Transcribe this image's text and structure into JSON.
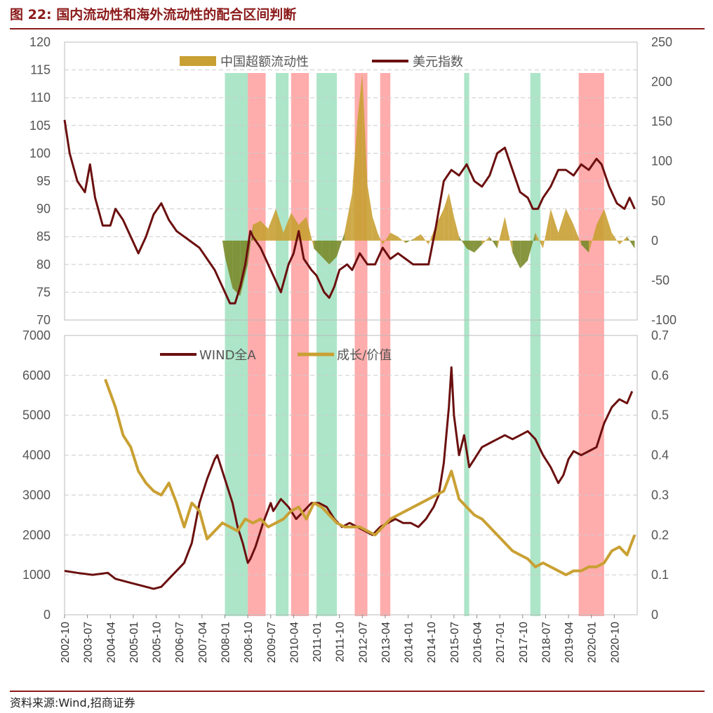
{
  "title": "图 22:  国内流动性和海外流动性的配合区间判断",
  "source": "资料来源:Wind,招商证券",
  "colors": {
    "dark_red": "#6B0F0F",
    "gold": "#C9A033",
    "olive": "#7A8A2A",
    "orange": "#D2691E",
    "green_band": "#9FE0BE",
    "red_band": "#FF9E9E",
    "title": "#8B1A1A"
  },
  "chart_data": [
    {
      "type": "line",
      "panel": "top",
      "legend": [
        "中国超额流动性",
        "美元指数"
      ],
      "y_left_ticks": [
        "120",
        "115",
        "110",
        "105",
        "100",
        "95",
        "90",
        "85",
        "80",
        "75",
        "70"
      ],
      "y_right_ticks": [
        "250",
        "200",
        "150",
        "100",
        "50",
        "0",
        "-50",
        "-100"
      ],
      "ylim_left": [
        70,
        120
      ],
      "ylim_right": [
        -100,
        250
      ],
      "bands": [
        {
          "color": "green",
          "start": "2008-01",
          "end": "2008-10"
        },
        {
          "color": "red",
          "start": "2008-10",
          "end": "2009-05"
        },
        {
          "color": "green",
          "start": "2009-09",
          "end": "2010-02"
        },
        {
          "color": "red",
          "start": "2010-03",
          "end": "2010-10"
        },
        {
          "color": "green",
          "start": "2011-01",
          "end": "2011-09"
        },
        {
          "color": "red",
          "start": "2012-04",
          "end": "2012-09"
        },
        {
          "color": "red",
          "start": "2013-02",
          "end": "2013-06"
        },
        {
          "color": "green",
          "start": "2015-11",
          "end": "2016-01"
        },
        {
          "color": "green",
          "start": "2018-01",
          "end": "2018-05"
        },
        {
          "color": "red",
          "start": "2019-08",
          "end": "2020-06"
        }
      ],
      "series": [
        {
          "name": "美元指数",
          "axis": "left",
          "x": [
            "2002-10",
            "2002-12",
            "2003-03",
            "2003-06",
            "2003-08",
            "2003-10",
            "2004-01",
            "2004-04",
            "2004-06",
            "2004-09",
            "2004-12",
            "2005-03",
            "2005-06",
            "2005-09",
            "2005-12",
            "2006-03",
            "2006-06",
            "2006-09",
            "2006-12",
            "2007-03",
            "2007-06",
            "2007-09",
            "2007-12",
            "2008-03",
            "2008-05",
            "2008-07",
            "2008-09",
            "2008-11",
            "2008-12",
            "2009-03",
            "2009-06",
            "2009-09",
            "2009-11",
            "2010-02",
            "2010-04",
            "2010-06",
            "2010-08",
            "2010-11",
            "2011-01",
            "2011-04",
            "2011-06",
            "2011-08",
            "2011-10",
            "2012-01",
            "2012-03",
            "2012-06",
            "2012-09",
            "2012-12",
            "2013-03",
            "2013-06",
            "2013-09",
            "2013-12",
            "2014-03",
            "2014-06",
            "2014-09",
            "2014-12",
            "2015-03",
            "2015-06",
            "2015-09",
            "2015-12",
            "2016-03",
            "2016-06",
            "2016-09",
            "2016-12",
            "2017-03",
            "2017-06",
            "2017-09",
            "2017-12",
            "2018-02",
            "2018-04",
            "2018-06",
            "2018-09",
            "2018-12",
            "2019-03",
            "2019-06",
            "2019-09",
            "2019-12",
            "2020-03",
            "2020-05",
            "2020-08",
            "2020-11",
            "2021-02",
            "2021-04",
            "2021-06"
          ],
          "values": [
            106,
            100,
            95,
            93,
            98,
            92,
            87,
            87,
            90,
            88,
            85,
            82,
            85,
            89,
            91,
            88,
            86,
            85,
            84,
            83,
            81,
            79,
            76,
            73,
            73,
            76,
            80,
            86,
            85,
            83,
            80,
            77,
            75,
            80,
            82,
            86,
            81,
            79,
            78,
            75,
            74,
            76,
            79,
            80,
            79,
            82,
            80,
            80,
            83,
            81,
            82,
            81,
            80,
            80,
            80,
            87,
            95,
            97,
            96,
            98,
            95,
            94,
            96,
            100,
            101,
            97,
            93,
            92,
            90,
            90,
            92,
            94,
            97,
            97,
            96,
            98,
            97,
            99,
            98,
            94,
            91,
            90,
            92,
            90
          ]
        },
        {
          "name": "中国超额流动性",
          "axis": "right",
          "x": [
            "2002-10",
            "2007-12",
            "2008-01",
            "2008-04",
            "2008-07",
            "2008-10",
            "2008-12",
            "2009-03",
            "2009-06",
            "2009-09",
            "2009-12",
            "2010-03",
            "2010-06",
            "2010-09",
            "2010-12",
            "2011-03",
            "2011-06",
            "2011-09",
            "2011-12",
            "2012-03",
            "2012-05",
            "2012-07",
            "2012-09",
            "2012-11",
            "2013-01",
            "2013-03",
            "2013-06",
            "2013-09",
            "2013-12",
            "2014-03",
            "2014-06",
            "2014-09",
            "2014-12",
            "2015-03",
            "2015-05",
            "2015-07",
            "2015-09",
            "2015-12",
            "2016-03",
            "2016-06",
            "2016-09",
            "2016-12",
            "2017-03",
            "2017-06",
            "2017-09",
            "2017-12",
            "2018-03",
            "2018-06",
            "2018-09",
            "2018-12",
            "2019-03",
            "2019-06",
            "2019-09",
            "2019-12",
            "2020-03",
            "2020-06",
            "2020-09",
            "2020-12",
            "2021-03",
            "2021-06"
          ],
          "values": [
            0,
            0,
            -20,
            -60,
            -70,
            -30,
            20,
            25,
            15,
            40,
            10,
            35,
            20,
            30,
            -10,
            -20,
            -30,
            -20,
            10,
            60,
            150,
            210,
            70,
            30,
            10,
            -5,
            10,
            5,
            -3,
            2,
            8,
            -5,
            20,
            40,
            60,
            30,
            5,
            -10,
            -15,
            -5,
            5,
            -10,
            30,
            -15,
            -35,
            -25,
            10,
            -10,
            40,
            10,
            40,
            20,
            -5,
            -15,
            20,
            40,
            10,
            -5,
            5,
            -10
          ]
        }
      ]
    },
    {
      "type": "line",
      "panel": "bottom",
      "legend": [
        "WIND全A",
        "成长/价值"
      ],
      "y_left_ticks": [
        "7000",
        "6000",
        "5000",
        "4000",
        "3000",
        "2000",
        "1000",
        "0"
      ],
      "y_right_ticks": [
        "0.7",
        "0.6",
        "0.5",
        "0.4",
        "0.3",
        "0.2",
        "0.1",
        "0"
      ],
      "ylim_left": [
        0,
        7000
      ],
      "ylim_right": [
        0,
        0.7
      ],
      "x_tick_labels": [
        "2002-10",
        "2003-07",
        "2004-04",
        "2005-01",
        "2005-10",
        "2006-07",
        "2007-04",
        "2008-01",
        "2008-10",
        "2009-07",
        "2010-04",
        "2011-01",
        "2011-10",
        "2012-07",
        "2013-04",
        "2014-01",
        "2014-10",
        "2015-07",
        "2016-04",
        "2017-01",
        "2017-10",
        "2018-07",
        "2019-04",
        "2020-01",
        "2020-10"
      ],
      "series": [
        {
          "name": "WIND全A",
          "axis": "left",
          "x": [
            "2002-10",
            "2003-03",
            "2003-09",
            "2004-03",
            "2004-06",
            "2004-12",
            "2005-06",
            "2005-09",
            "2005-12",
            "2006-03",
            "2006-06",
            "2006-09",
            "2006-12",
            "2007-03",
            "2007-06",
            "2007-09",
            "2007-10",
            "2007-12",
            "2008-02",
            "2008-04",
            "2008-06",
            "2008-08",
            "2008-10",
            "2008-11",
            "2009-01",
            "2009-04",
            "2009-07",
            "2009-08",
            "2009-11",
            "2010-02",
            "2010-05",
            "2010-08",
            "2010-11",
            "2011-02",
            "2011-05",
            "2011-08",
            "2011-11",
            "2012-02",
            "2012-05",
            "2012-08",
            "2012-11",
            "2013-02",
            "2013-05",
            "2013-08",
            "2013-11",
            "2014-02",
            "2014-05",
            "2014-08",
            "2014-11",
            "2015-01",
            "2015-03",
            "2015-05",
            "2015-06",
            "2015-07",
            "2015-09",
            "2015-11",
            "2016-01",
            "2016-03",
            "2016-06",
            "2016-09",
            "2016-12",
            "2017-03",
            "2017-06",
            "2017-09",
            "2017-12",
            "2018-03",
            "2018-06",
            "2018-09",
            "2018-12",
            "2019-02",
            "2019-04",
            "2019-06",
            "2019-09",
            "2019-12",
            "2020-03",
            "2020-06",
            "2020-09",
            "2020-12",
            "2021-03",
            "2021-05"
          ],
          "values": [
            1100,
            1050,
            1000,
            1050,
            900,
            800,
            700,
            650,
            700,
            900,
            1100,
            1300,
            1800,
            2800,
            3400,
            3900,
            4000,
            3600,
            3200,
            2800,
            2200,
            1800,
            1300,
            1400,
            1700,
            2300,
            2800,
            2600,
            2900,
            2700,
            2400,
            2600,
            2800,
            2800,
            2700,
            2400,
            2200,
            2300,
            2200,
            2100,
            2000,
            2200,
            2300,
            2400,
            2300,
            2300,
            2200,
            2400,
            2700,
            3000,
            3800,
            5200,
            6200,
            5000,
            4000,
            4500,
            3700,
            3900,
            4200,
            4300,
            4400,
            4500,
            4400,
            4500,
            4600,
            4400,
            4000,
            3700,
            3300,
            3500,
            3900,
            4100,
            4000,
            4100,
            4200,
            4800,
            5200,
            5400,
            5300,
            5600
          ]
        },
        {
          "name": "成长/价值",
          "axis": "right",
          "x": [
            "2004-02",
            "2004-06",
            "2004-09",
            "2004-12",
            "2005-03",
            "2005-06",
            "2005-09",
            "2005-12",
            "2006-03",
            "2006-06",
            "2006-09",
            "2006-12",
            "2007-03",
            "2007-06",
            "2007-09",
            "2007-12",
            "2008-03",
            "2008-06",
            "2008-09",
            "2008-12",
            "2009-03",
            "2009-06",
            "2009-09",
            "2009-12",
            "2010-03",
            "2010-06",
            "2010-09",
            "2010-12",
            "2011-03",
            "2011-06",
            "2011-09",
            "2011-12",
            "2012-03",
            "2012-06",
            "2012-09",
            "2012-12",
            "2013-03",
            "2013-06",
            "2013-09",
            "2013-12",
            "2014-03",
            "2014-06",
            "2014-09",
            "2014-12",
            "2015-03",
            "2015-06",
            "2015-09",
            "2015-12",
            "2016-03",
            "2016-06",
            "2016-09",
            "2016-12",
            "2017-03",
            "2017-06",
            "2017-09",
            "2017-12",
            "2018-03",
            "2018-06",
            "2018-09",
            "2018-12",
            "2019-03",
            "2019-06",
            "2019-09",
            "2019-12",
            "2020-03",
            "2020-06",
            "2020-09",
            "2020-12",
            "2021-03",
            "2021-06"
          ],
          "values": [
            0.59,
            0.52,
            0.45,
            0.42,
            0.36,
            0.33,
            0.31,
            0.3,
            0.33,
            0.28,
            0.22,
            0.28,
            0.26,
            0.19,
            0.21,
            0.23,
            0.22,
            0.21,
            0.24,
            0.23,
            0.24,
            0.22,
            0.23,
            0.24,
            0.26,
            0.27,
            0.24,
            0.28,
            0.27,
            0.25,
            0.23,
            0.22,
            0.22,
            0.22,
            0.21,
            0.2,
            0.22,
            0.24,
            0.25,
            0.26,
            0.27,
            0.28,
            0.29,
            0.3,
            0.31,
            0.36,
            0.29,
            0.27,
            0.25,
            0.24,
            0.22,
            0.2,
            0.18,
            0.16,
            0.15,
            0.14,
            0.12,
            0.13,
            0.12,
            0.11,
            0.1,
            0.11,
            0.11,
            0.12,
            0.12,
            0.13,
            0.16,
            0.17,
            0.15,
            0.2
          ]
        }
      ]
    }
  ]
}
